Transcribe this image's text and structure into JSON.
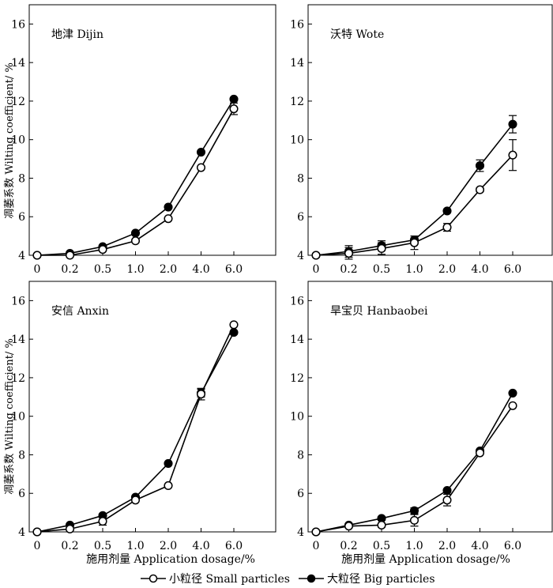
{
  "figure": {
    "x_axis_title": "施用剂量 Application dosage/%",
    "y_axis_title": "凋萎系数 Wilting coefficient/ %",
    "legend_small": "小粒径 Small particles",
    "legend_big": "大粒径 Big particles"
  },
  "chart_data": [
    {
      "type": "line",
      "title": "地津 Dijin",
      "categories": [
        "0",
        "0.2",
        "0.5",
        "1.0",
        "2.0",
        "4.0",
        "6.0"
      ],
      "xlabel": "",
      "ylabel": "凋萎系数 Wilting coefficient/ %",
      "ylim": [
        4,
        17
      ],
      "yticks": [
        "4",
        "6",
        "8",
        "10",
        "12",
        "14",
        "16"
      ],
      "series": [
        {
          "name": "小粒径 Small particles",
          "marker": "open-circle",
          "values": [
            4.0,
            4.0,
            4.3,
            4.75,
            5.9,
            8.55,
            11.6
          ],
          "errors": [
            0,
            0,
            0,
            0,
            0,
            0,
            0.3
          ]
        },
        {
          "name": "大粒径 Big particles",
          "marker": "filled-circle",
          "values": [
            4.0,
            4.1,
            4.45,
            5.15,
            6.5,
            9.35,
            12.1
          ],
          "errors": [
            0,
            0,
            0,
            0,
            0,
            0,
            0
          ]
        }
      ]
    },
    {
      "type": "line",
      "title": "沃特 Wote",
      "categories": [
        "0",
        "0.2",
        "0.5",
        "1.0",
        "2.0",
        "4.0",
        "6.0"
      ],
      "xlabel": "",
      "ylabel": "",
      "ylim": [
        4,
        17
      ],
      "yticks": [
        "4",
        "6",
        "8",
        "10",
        "12",
        "14",
        "16"
      ],
      "series": [
        {
          "name": "小粒径 Small particles",
          "marker": "open-circle",
          "values": [
            4.0,
            4.1,
            4.35,
            4.65,
            5.45,
            7.4,
            9.2
          ],
          "errors": [
            0.1,
            0.3,
            0.3,
            0.35,
            0.2,
            0.1,
            0.8
          ]
        },
        {
          "name": "大粒径 Big particles",
          "marker": "filled-circle",
          "values": [
            4.0,
            4.2,
            4.5,
            4.8,
            6.3,
            8.65,
            10.8
          ],
          "errors": [
            0,
            0.3,
            0.25,
            0.1,
            0.1,
            0.3,
            0.45
          ]
        }
      ]
    },
    {
      "type": "line",
      "title": "安信 Anxin",
      "categories": [
        "0",
        "0.2",
        "0.5",
        "1.0",
        "2.0",
        "4.0",
        "6.0"
      ],
      "xlabel": "施用剂量 Application dosage/%",
      "ylabel": "凋萎系数 Wilting coefficient/ %",
      "ylim": [
        4,
        17
      ],
      "yticks": [
        "4",
        "6",
        "8",
        "10",
        "12",
        "14",
        "16"
      ],
      "series": [
        {
          "name": "小粒径 Small particles",
          "marker": "open-circle",
          "values": [
            4.0,
            4.15,
            4.55,
            5.65,
            6.4,
            11.15,
            14.75
          ],
          "errors": [
            0,
            0,
            0.2,
            0,
            0,
            0.3,
            0
          ]
        },
        {
          "name": "大粒径 Big particles",
          "marker": "filled-circle",
          "values": [
            4.0,
            4.35,
            4.85,
            5.8,
            7.55,
            11.2,
            14.35
          ],
          "errors": [
            0,
            0,
            0,
            0,
            0,
            0.2,
            0
          ]
        }
      ]
    },
    {
      "type": "line",
      "title": "旱宝贝 Hanbaobei",
      "categories": [
        "0",
        "0.2",
        "0.5",
        "1.0",
        "2.0",
        "4.0",
        "6.0"
      ],
      "xlabel": "施用剂量 Application dosage/%",
      "ylabel": "",
      "ylim": [
        4,
        17
      ],
      "yticks": [
        "4",
        "6",
        "8",
        "10",
        "12",
        "14",
        "16"
      ],
      "series": [
        {
          "name": "小粒径 Small particles",
          "marker": "open-circle",
          "values": [
            4.0,
            4.3,
            4.35,
            4.6,
            5.65,
            8.1,
            10.55
          ],
          "errors": [
            0,
            0,
            0.1,
            0.3,
            0.3,
            0,
            0
          ]
        },
        {
          "name": "大粒径 Big particles",
          "marker": "filled-circle",
          "values": [
            4.0,
            4.35,
            4.7,
            5.1,
            6.15,
            8.2,
            11.2
          ],
          "errors": [
            0,
            0,
            0.1,
            0.15,
            0,
            0,
            0
          ]
        }
      ]
    }
  ]
}
